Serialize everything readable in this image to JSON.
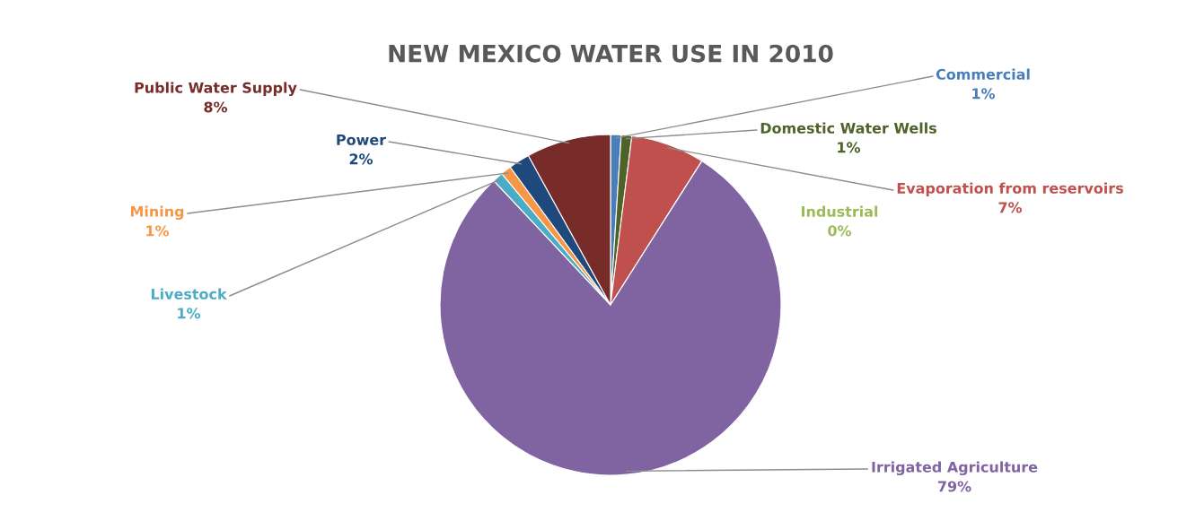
{
  "chart_data": {
    "type": "pie",
    "title": "NEW MEXICO WATER USE IN 2010",
    "categories": [
      "Commercial",
      "Domestic Water Wells",
      "Evaporation from reservoirs",
      "Industrial",
      "Irrigated Agriculture",
      "Livestock",
      "Mining",
      "Power",
      "Public Water Supply"
    ],
    "values": [
      1,
      1,
      7,
      0,
      79,
      1,
      1,
      2,
      8
    ],
    "value_labels": [
      "1%",
      "1%",
      "7%",
      "0%",
      "79%",
      "1%",
      "1%",
      "2%",
      "8%"
    ],
    "colors": [
      "#4a7ebb",
      "#4f6228",
      "#c0504d",
      "#9bbb59",
      "#8064a2",
      "#4bacc6",
      "#f79646",
      "#1f497d",
      "#772c2a"
    ],
    "legend": false
  }
}
